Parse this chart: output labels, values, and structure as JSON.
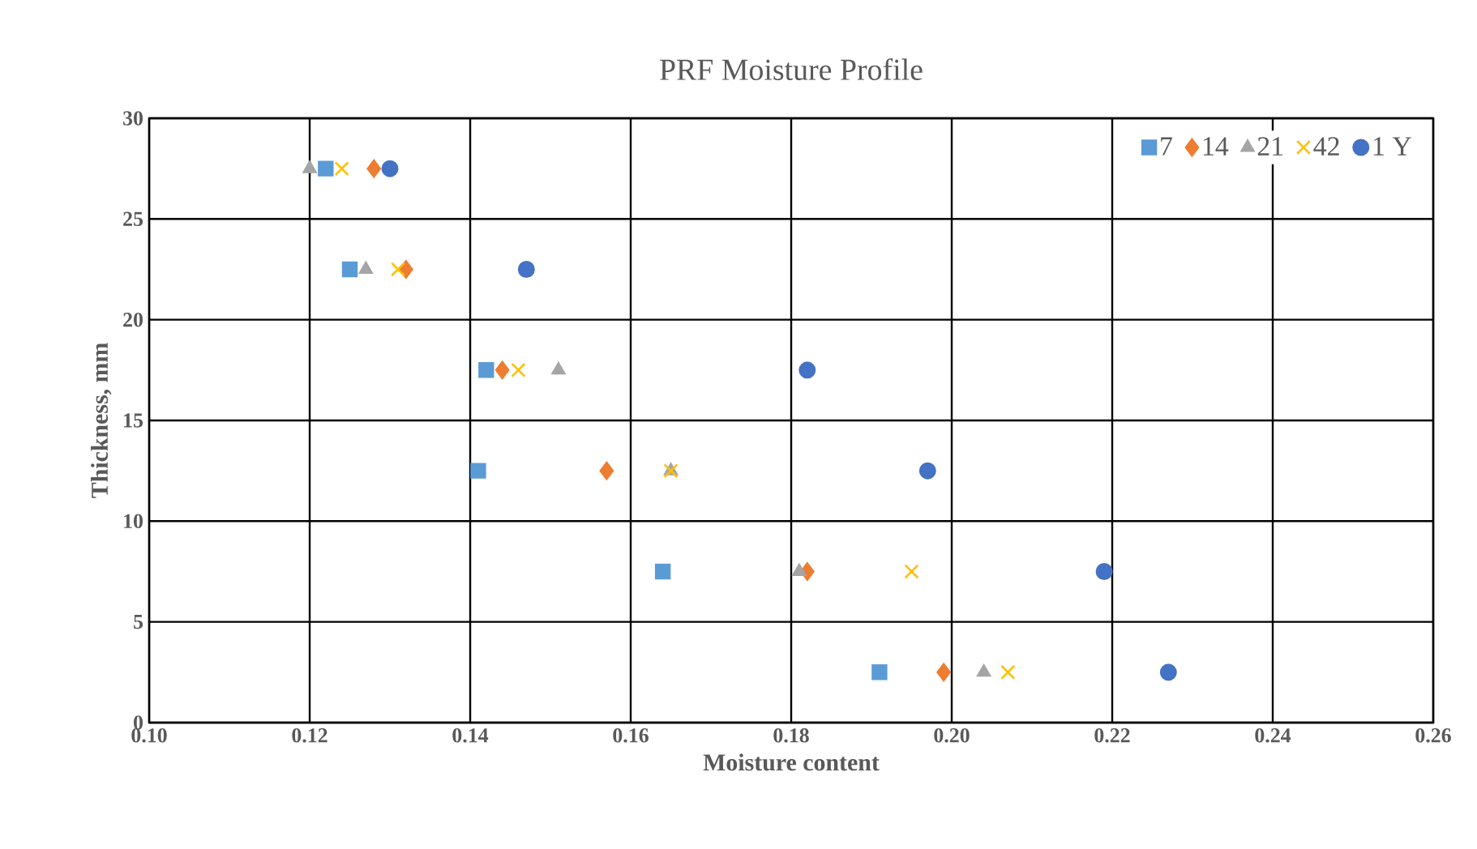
{
  "chart_data": {
    "type": "scatter",
    "title": "PRF Moisture Profile",
    "xlabel": "Moisture content",
    "ylabel": "Thickness, mm",
    "xlim": [
      0.1,
      0.26
    ],
    "xticks": [
      {
        "value": 0.1,
        "label": "0.10"
      },
      {
        "value": 0.12,
        "label": "0.12"
      },
      {
        "value": 0.14,
        "label": "0.14"
      },
      {
        "value": 0.16,
        "label": "0.16"
      },
      {
        "value": 0.18,
        "label": "0.18"
      },
      {
        "value": 0.2,
        "label": "0.20"
      },
      {
        "value": 0.22,
        "label": "0.22"
      },
      {
        "value": 0.24,
        "label": "0.24"
      },
      {
        "value": 0.26,
        "label": "0.26"
      }
    ],
    "ylim": [
      0,
      30
    ],
    "yticks": [
      0,
      5,
      10,
      15,
      20,
      25,
      30
    ],
    "grid": true,
    "legend": "top right",
    "series": [
      {
        "name": "7",
        "color": "#5b9bd5",
        "marker": "square",
        "x": [
          0.122,
          0.125,
          0.142,
          0.141,
          0.164,
          0.191
        ],
        "values": [
          27.5,
          22.5,
          17.5,
          12.5,
          7.5,
          2.5
        ]
      },
      {
        "name": "14",
        "color": "#ed7d31",
        "marker": "diamond",
        "x": [
          0.128,
          0.132,
          0.144,
          0.157,
          0.182,
          0.199
        ],
        "values": [
          27.5,
          22.5,
          17.5,
          12.5,
          7.5,
          2.5
        ]
      },
      {
        "name": "21",
        "color": "#a5a5a5",
        "marker": "triangle",
        "x": [
          0.12,
          0.127,
          0.151,
          0.165,
          0.181,
          0.204
        ],
        "values": [
          27.5,
          22.5,
          17.5,
          12.5,
          7.5,
          2.5
        ]
      },
      {
        "name": "42",
        "color": "#ffc000",
        "marker": "cross",
        "x": [
          0.124,
          0.131,
          0.146,
          0.165,
          0.195,
          0.207
        ],
        "values": [
          27.5,
          22.5,
          17.5,
          12.5,
          7.5,
          2.5
        ]
      },
      {
        "name": "1 Y",
        "color": "#4472c4",
        "marker": "circle",
        "x": [
          0.13,
          0.147,
          0.182,
          0.197,
          0.219,
          0.227
        ],
        "values": [
          27.5,
          22.5,
          17.5,
          12.5,
          7.5,
          2.5
        ]
      }
    ]
  }
}
